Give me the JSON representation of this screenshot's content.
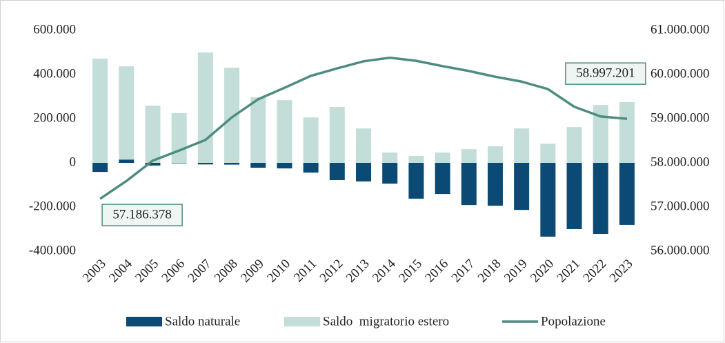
{
  "chart_data": {
    "type": "bar_line_combo",
    "categories": [
      "2003",
      "2004",
      "2005",
      "2006",
      "2007",
      "2008",
      "2009",
      "2010",
      "2011",
      "2012",
      "2013",
      "2014",
      "2015",
      "2016",
      "2017",
      "2018",
      "2019",
      "2020",
      "2021",
      "2022",
      "2023"
    ],
    "series": [
      {
        "name": "Saldo naturale",
        "type": "bar",
        "color": "#0a4a74",
        "values": [
          -41000,
          15000,
          -12000,
          -2000,
          -7000,
          -8000,
          -22000,
          -25000,
          -44000,
          -78000,
          -84000,
          -94000,
          -162000,
          -141000,
          -191000,
          -194000,
          -213000,
          -334000,
          -300000,
          -322000,
          -281000
        ]
      },
      {
        "name": "Saldo  migratorio estero",
        "type": "bar",
        "color": "#c3ddd9",
        "values": [
          472000,
          422000,
          259000,
          225000,
          500000,
          431000,
          297000,
          284000,
          206000,
          253000,
          156000,
          47000,
          31000,
          47000,
          62000,
          75000,
          156000,
          87000,
          162000,
          262000,
          275000
        ]
      },
      {
        "name": "Popolazione",
        "type": "line",
        "axis": "y2",
        "color": "#4e8c80",
        "values": [
          57186378,
          57590000,
          58050000,
          58280000,
          58520000,
          59030000,
          59440000,
          59700000,
          59970000,
          60140000,
          60300000,
          60380000,
          60310000,
          60190000,
          60080000,
          59950000,
          59840000,
          59670000,
          59270000,
          59050000,
          58997201
        ],
        "value_labels": [
          "57.186.378",
          null,
          null,
          null,
          null,
          null,
          null,
          null,
          null,
          null,
          null,
          null,
          null,
          null,
          null,
          null,
          null,
          null,
          null,
          null,
          "58.997.201"
        ]
      }
    ],
    "ylim": [
      -400000,
      600000
    ],
    "yticks": [
      {
        "value": -400000,
        "label": "-400.000"
      },
      {
        "value": -200000,
        "label": "-200.000"
      },
      0,
      {
        "value": 200000,
        "label": "200.000"
      },
      {
        "value": 400000,
        "label": "400.000"
      },
      {
        "value": 600000,
        "label": "600.000"
      }
    ],
    "y2lim": [
      56000000,
      61000000
    ],
    "y2ticks": [
      {
        "value": 56000000,
        "label": "56.000.000"
      },
      {
        "value": 57000000,
        "label": "57.000.000"
      },
      {
        "value": 58000000,
        "label": "58.000.000"
      },
      {
        "value": 59000000,
        "label": "59.000.000"
      },
      {
        "value": 60000000,
        "label": "60.000.000"
      },
      {
        "value": 61000000,
        "label": "61.000.000"
      }
    ],
    "legend": "bottom",
    "grid": false
  }
}
